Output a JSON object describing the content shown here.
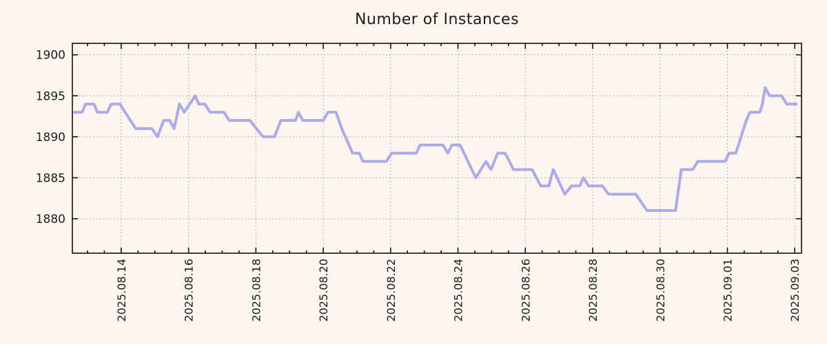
{
  "chart_data": {
    "type": "line",
    "title": "Number of Instances",
    "xlabel": "",
    "ylabel": "",
    "legend": "none",
    "grid": "dotted",
    "ylim": [
      1875.8,
      1901.4
    ],
    "y_ticks": [
      1880,
      1885,
      1890,
      1895,
      1900
    ],
    "y_tick_labels": [
      "1880",
      "1885",
      "1890",
      "1895",
      "1900"
    ],
    "xlim_days": [
      -1.45,
      20.2
    ],
    "x_major_tick_days": [
      0,
      2,
      4,
      6,
      8,
      10,
      12,
      14,
      16,
      18,
      20
    ],
    "x_tick_labels": [
      "2025.08.14",
      "2025.08.16",
      "2025.08.18",
      "2025.08.20",
      "2025.08.22",
      "2025.08.24",
      "2025.08.26",
      "2025.08.28",
      "2025.08.30",
      "2025.09.01",
      "2025.09.03"
    ],
    "x_minor_step_days": 0.5,
    "series": [
      {
        "name": "instances",
        "color": "#aaaaec",
        "points_day_value": [
          [
            -1.42,
            1893
          ],
          [
            -1.16,
            1893
          ],
          [
            -1.06,
            1894
          ],
          [
            -0.81,
            1894
          ],
          [
            -0.71,
            1893
          ],
          [
            -0.41,
            1893
          ],
          [
            -0.3,
            1894
          ],
          [
            -0.04,
            1894
          ],
          [
            0.43,
            1891
          ],
          [
            0.91,
            1891
          ],
          [
            1.08,
            1890
          ],
          [
            1.26,
            1892
          ],
          [
            1.44,
            1892
          ],
          [
            1.57,
            1891
          ],
          [
            1.73,
            1894
          ],
          [
            1.87,
            1893
          ],
          [
            2.2,
            1895
          ],
          [
            2.3,
            1894
          ],
          [
            2.48,
            1894
          ],
          [
            2.64,
            1893
          ],
          [
            3.05,
            1893
          ],
          [
            3.21,
            1892
          ],
          [
            3.82,
            1892
          ],
          [
            4.21,
            1890
          ],
          [
            4.55,
            1890
          ],
          [
            4.74,
            1892
          ],
          [
            5.18,
            1892
          ],
          [
            5.26,
            1893
          ],
          [
            5.39,
            1892
          ],
          [
            6.0,
            1892
          ],
          [
            6.14,
            1893
          ],
          [
            6.38,
            1893
          ],
          [
            6.55,
            1891
          ],
          [
            6.87,
            1888
          ],
          [
            7.07,
            1888
          ],
          [
            7.18,
            1887
          ],
          [
            7.87,
            1887
          ],
          [
            8.03,
            1888
          ],
          [
            8.76,
            1888
          ],
          [
            8.88,
            1889
          ],
          [
            9.55,
            1889
          ],
          [
            9.7,
            1888
          ],
          [
            9.82,
            1889
          ],
          [
            10.06,
            1889
          ],
          [
            10.53,
            1885
          ],
          [
            10.83,
            1887
          ],
          [
            10.98,
            1886
          ],
          [
            11.18,
            1888
          ],
          [
            11.4,
            1888
          ],
          [
            11.65,
            1886
          ],
          [
            12.2,
            1886
          ],
          [
            12.46,
            1884
          ],
          [
            12.7,
            1884
          ],
          [
            12.83,
            1886
          ],
          [
            13.17,
            1883
          ],
          [
            13.37,
            1884
          ],
          [
            13.62,
            1884
          ],
          [
            13.72,
            1885
          ],
          [
            13.88,
            1884
          ],
          [
            14.29,
            1884
          ],
          [
            14.47,
            1883
          ],
          [
            15.28,
            1883
          ],
          [
            15.61,
            1881
          ],
          [
            16.46,
            1881
          ],
          [
            16.63,
            1886
          ],
          [
            16.97,
            1886
          ],
          [
            17.12,
            1887
          ],
          [
            17.93,
            1887
          ],
          [
            18.05,
            1888
          ],
          [
            18.25,
            1888
          ],
          [
            18.56,
            1892
          ],
          [
            18.67,
            1893
          ],
          [
            18.96,
            1893
          ],
          [
            19.04,
            1894
          ],
          [
            19.12,
            1896
          ],
          [
            19.25,
            1895
          ],
          [
            19.61,
            1895
          ],
          [
            19.76,
            1894
          ],
          [
            20.08,
            1894
          ]
        ]
      }
    ]
  },
  "colors": {
    "background": "#fdf6ee",
    "axis": "#000000",
    "grid": "#999999",
    "text": "#1c1c1c",
    "line": "#aaaaec"
  }
}
